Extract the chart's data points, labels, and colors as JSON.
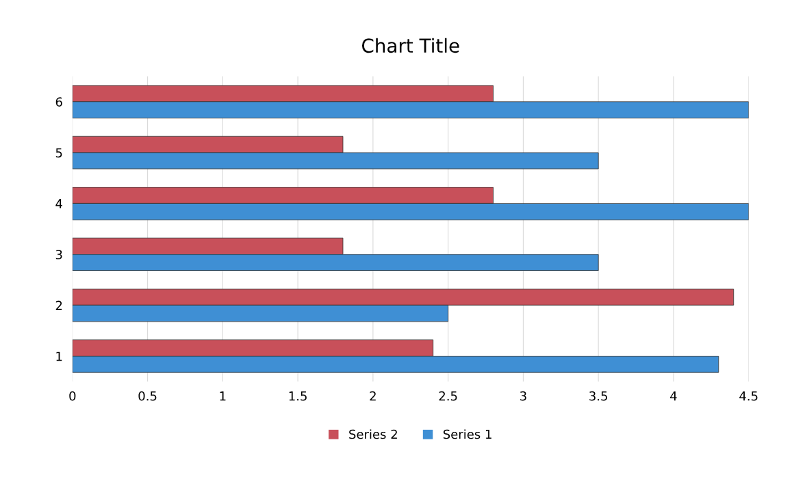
{
  "chart_data": {
    "type": "bar",
    "orientation": "horizontal",
    "title": "Chart Title",
    "categories": [
      "6",
      "5",
      "4",
      "3",
      "2",
      "1"
    ],
    "series": [
      {
        "name": "Series 2",
        "color": "#c8505a",
        "values": [
          2.8,
          1.8,
          2.8,
          1.8,
          4.4,
          2.4
        ]
      },
      {
        "name": "Series 1",
        "color": "#3f8fd4",
        "values": [
          4.5,
          3.5,
          4.5,
          3.5,
          2.5,
          4.3
        ]
      }
    ],
    "xlim": [
      0,
      4.5
    ],
    "xticks": [
      0,
      0.5,
      1,
      1.5,
      2,
      2.5,
      3,
      3.5,
      4,
      4.5
    ],
    "grid": "x",
    "legend": "bottom"
  }
}
